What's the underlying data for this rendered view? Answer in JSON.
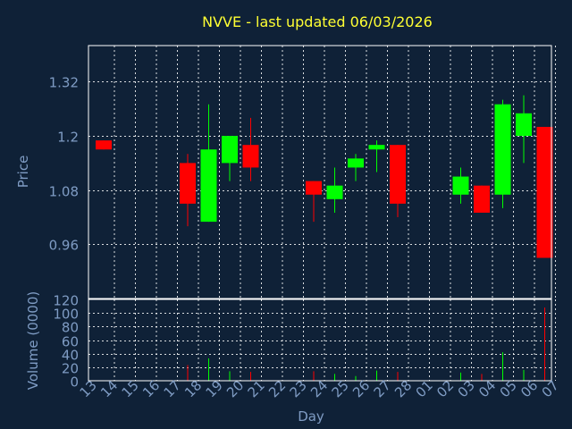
{
  "chart_data": {
    "type": "candlestick",
    "title": "NVVE - last updated 06/03/2026",
    "xlabel": "Day",
    "price_ylabel": "Price",
    "volume_ylabel": "Volume (0000)",
    "x": [
      "13",
      "14",
      "15",
      "16",
      "17",
      "18",
      "19",
      "20",
      "21",
      "22",
      "23",
      "24",
      "25",
      "26",
      "27",
      "28",
      "01",
      "02",
      "03",
      "04",
      "05",
      "06",
      "07"
    ],
    "price_ylim": [
      0.84,
      1.4
    ],
    "price_ticks": [
      "1.32",
      "1.2",
      "1.08",
      "0.96"
    ],
    "price_tick_values": [
      1.32,
      1.2,
      1.08,
      0.96
    ],
    "volume_ylim": [
      0,
      120
    ],
    "volume_ticks": [
      "120",
      "100",
      "80",
      "60",
      "40",
      "20",
      "0"
    ],
    "volume_tick_values": [
      120,
      100,
      80,
      60,
      40,
      20,
      0
    ],
    "grid": true,
    "up_color": "#00ff00",
    "down_color": "#ff0000",
    "candles": [
      {
        "x": "13",
        "open": 1.19,
        "high": 1.19,
        "low": 1.17,
        "close": 1.17,
        "volume": 0
      },
      {
        "x": "17",
        "open": 1.14,
        "high": 1.16,
        "low": 1.0,
        "close": 1.05,
        "volume": 23
      },
      {
        "x": "18",
        "open": 1.01,
        "high": 1.27,
        "low": 1.01,
        "close": 1.17,
        "volume": 33
      },
      {
        "x": "19",
        "open": 1.14,
        "high": 1.2,
        "low": 1.1,
        "close": 1.2,
        "volume": 14
      },
      {
        "x": "20",
        "open": 1.18,
        "high": 1.24,
        "low": 1.1,
        "close": 1.13,
        "volume": 13
      },
      {
        "x": "23",
        "open": 1.1,
        "high": 1.1,
        "low": 1.01,
        "close": 1.07,
        "volume": 14
      },
      {
        "x": "24",
        "open": 1.06,
        "high": 1.13,
        "low": 1.03,
        "close": 1.09,
        "volume": 10
      },
      {
        "x": "25",
        "open": 1.13,
        "high": 1.16,
        "low": 1.1,
        "close": 1.15,
        "volume": 7
      },
      {
        "x": "26",
        "open": 1.17,
        "high": 1.19,
        "low": 1.12,
        "close": 1.18,
        "volume": 15
      },
      {
        "x": "27",
        "open": 1.18,
        "high": 1.18,
        "low": 1.02,
        "close": 1.05,
        "volume": 13
      },
      {
        "x": "02",
        "open": 1.07,
        "high": 1.13,
        "low": 1.05,
        "close": 1.11,
        "volume": 12
      },
      {
        "x": "03",
        "open": 1.09,
        "high": 1.09,
        "low": 1.03,
        "close": 1.03,
        "volume": 10
      },
      {
        "x": "04",
        "open": 1.07,
        "high": 1.28,
        "low": 1.04,
        "close": 1.27,
        "volume": 42
      },
      {
        "x": "05",
        "open": 1.2,
        "high": 1.29,
        "low": 1.14,
        "close": 1.25,
        "volume": 16
      },
      {
        "x": "06",
        "open": 1.22,
        "high": 1.22,
        "low": 0.93,
        "close": 0.93,
        "volume": 108
      }
    ]
  }
}
